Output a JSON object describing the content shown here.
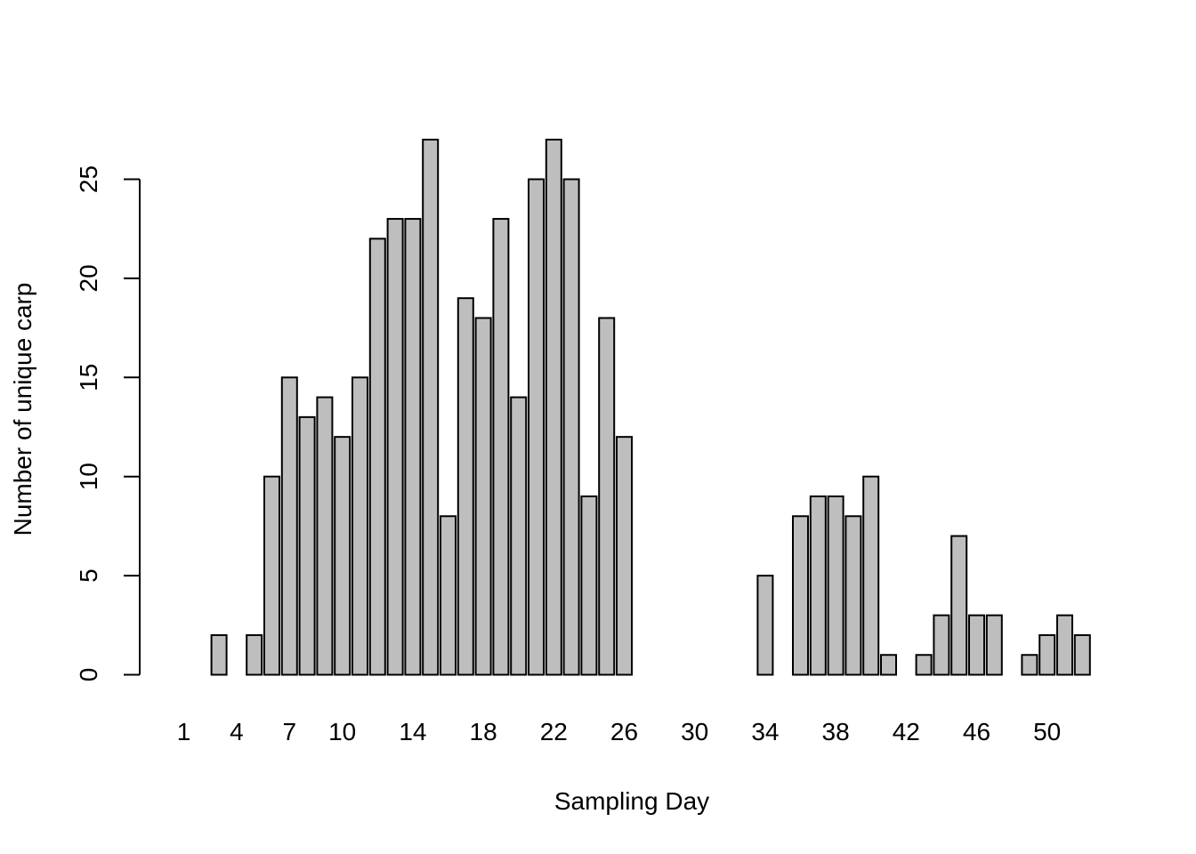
{
  "chart_data": {
    "type": "bar",
    "title": "",
    "xlabel": "Sampling Day",
    "ylabel": "Number of unique carp",
    "categories": [
      1,
      2,
      3,
      4,
      5,
      6,
      7,
      8,
      9,
      10,
      11,
      12,
      13,
      14,
      15,
      16,
      17,
      18,
      19,
      20,
      21,
      22,
      23,
      24,
      25,
      26,
      27,
      28,
      29,
      30,
      31,
      32,
      33,
      34,
      35,
      36,
      37,
      38,
      39,
      40,
      41,
      42,
      43,
      44,
      45,
      46,
      47,
      48,
      49,
      50,
      51,
      52
    ],
    "values": [
      0,
      0,
      2,
      0,
      2,
      10,
      15,
      13,
      14,
      12,
      15,
      22,
      23,
      23,
      27,
      8,
      19,
      18,
      23,
      14,
      25,
      27,
      25,
      9,
      18,
      12,
      0,
      0,
      0,
      0,
      0,
      0,
      0,
      5,
      0,
      8,
      9,
      9,
      8,
      10,
      1,
      0,
      1,
      3,
      7,
      3,
      3,
      0,
      1,
      2,
      3,
      2
    ],
    "x_tick_labels": [
      "1",
      "4",
      "7",
      "10",
      "14",
      "18",
      "22",
      "26",
      "30",
      "34",
      "38",
      "42",
      "46",
      "50"
    ],
    "y_ticks": [
      0,
      5,
      10,
      15,
      20,
      25
    ],
    "ylim": [
      0,
      27
    ],
    "grid": false,
    "legend": "none",
    "colors": {
      "bar_fill": "#bebebe",
      "bar_stroke": "#000000",
      "axis": "#000000",
      "background": "#ffffff"
    }
  }
}
